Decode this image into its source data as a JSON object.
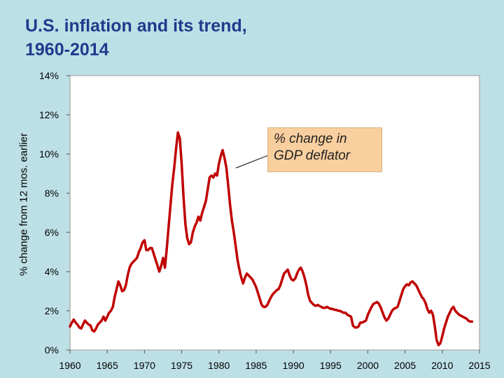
{
  "chart_data": {
    "type": "line",
    "title": "U.S. inflation and its trend, 1960-2014",
    "title_lines": [
      "U.S. inflation and its trend,",
      "1960-2014"
    ],
    "ylabel": "% change from 12 mos. earlier",
    "xlabel": "",
    "xlim": [
      1960,
      2015
    ],
    "ylim": [
      0,
      14
    ],
    "x_ticks": [
      "1960",
      "1965",
      "1970",
      "1975",
      "1980",
      "1985",
      "1990",
      "1995",
      "2000",
      "2005",
      "2010",
      "2015"
    ],
    "y_ticks": [
      "0%",
      "2%",
      "4%",
      "6%",
      "8%",
      "10%",
      "12%",
      "14%"
    ],
    "annotation_lines": [
      "% change in",
      "GDP deflator"
    ],
    "series": [
      {
        "name": "% change in GDP deflator",
        "color": "#c00000",
        "points": [
          [
            1960.0,
            1.2
          ],
          [
            1960.25,
            1.4
          ],
          [
            1960.5,
            1.55
          ],
          [
            1960.75,
            1.4
          ],
          [
            1961.0,
            1.3
          ],
          [
            1961.25,
            1.15
          ],
          [
            1961.5,
            1.1
          ],
          [
            1961.75,
            1.3
          ],
          [
            1962.0,
            1.5
          ],
          [
            1962.25,
            1.4
          ],
          [
            1962.5,
            1.3
          ],
          [
            1962.75,
            1.25
          ],
          [
            1963.0,
            1.0
          ],
          [
            1963.25,
            0.95
          ],
          [
            1963.5,
            1.1
          ],
          [
            1963.75,
            1.3
          ],
          [
            1964.0,
            1.4
          ],
          [
            1964.25,
            1.5
          ],
          [
            1964.5,
            1.7
          ],
          [
            1964.75,
            1.5
          ],
          [
            1965.0,
            1.7
          ],
          [
            1965.25,
            1.9
          ],
          [
            1965.5,
            2.0
          ],
          [
            1965.75,
            2.2
          ],
          [
            1966.0,
            2.7
          ],
          [
            1966.25,
            3.1
          ],
          [
            1966.5,
            3.5
          ],
          [
            1966.75,
            3.3
          ],
          [
            1967.0,
            3.0
          ],
          [
            1967.25,
            3.05
          ],
          [
            1967.5,
            3.3
          ],
          [
            1967.75,
            3.8
          ],
          [
            1968.0,
            4.2
          ],
          [
            1968.25,
            4.4
          ],
          [
            1968.5,
            4.5
          ],
          [
            1968.75,
            4.6
          ],
          [
            1969.0,
            4.7
          ],
          [
            1969.25,
            5.0
          ],
          [
            1969.5,
            5.2
          ],
          [
            1969.75,
            5.5
          ],
          [
            1970.0,
            5.6
          ],
          [
            1970.25,
            5.1
          ],
          [
            1970.5,
            5.1
          ],
          [
            1970.75,
            5.2
          ],
          [
            1971.0,
            5.2
          ],
          [
            1971.25,
            4.9
          ],
          [
            1971.5,
            4.6
          ],
          [
            1971.75,
            4.3
          ],
          [
            1972.0,
            4.0
          ],
          [
            1972.25,
            4.3
          ],
          [
            1972.5,
            4.7
          ],
          [
            1972.75,
            4.2
          ],
          [
            1973.0,
            5.2
          ],
          [
            1973.25,
            6.3
          ],
          [
            1973.5,
            7.4
          ],
          [
            1973.75,
            8.5
          ],
          [
            1974.0,
            9.3
          ],
          [
            1974.25,
            10.3
          ],
          [
            1974.5,
            11.1
          ],
          [
            1974.75,
            10.8
          ],
          [
            1975.0,
            9.5
          ],
          [
            1975.25,
            7.8
          ],
          [
            1975.5,
            6.4
          ],
          [
            1975.75,
            5.7
          ],
          [
            1976.0,
            5.4
          ],
          [
            1976.25,
            5.5
          ],
          [
            1976.5,
            6.0
          ],
          [
            1976.75,
            6.3
          ],
          [
            1977.0,
            6.5
          ],
          [
            1977.25,
            6.8
          ],
          [
            1977.5,
            6.6
          ],
          [
            1977.75,
            7.0
          ],
          [
            1978.0,
            7.3
          ],
          [
            1978.25,
            7.6
          ],
          [
            1978.5,
            8.2
          ],
          [
            1978.75,
            8.8
          ],
          [
            1979.0,
            8.9
          ],
          [
            1979.25,
            8.8
          ],
          [
            1979.5,
            9.0
          ],
          [
            1979.75,
            8.9
          ],
          [
            1980.0,
            9.5
          ],
          [
            1980.25,
            9.9
          ],
          [
            1980.5,
            10.2
          ],
          [
            1980.75,
            9.8
          ],
          [
            1981.0,
            9.3
          ],
          [
            1981.25,
            8.4
          ],
          [
            1981.5,
            7.4
          ],
          [
            1981.75,
            6.6
          ],
          [
            1982.0,
            6.0
          ],
          [
            1982.25,
            5.3
          ],
          [
            1982.5,
            4.6
          ],
          [
            1982.75,
            4.1
          ],
          [
            1983.0,
            3.7
          ],
          [
            1983.25,
            3.4
          ],
          [
            1983.5,
            3.7
          ],
          [
            1983.75,
            3.9
          ],
          [
            1984.0,
            3.8
          ],
          [
            1984.25,
            3.7
          ],
          [
            1984.5,
            3.6
          ],
          [
            1984.75,
            3.4
          ],
          [
            1985.0,
            3.2
          ],
          [
            1985.25,
            2.9
          ],
          [
            1985.5,
            2.6
          ],
          [
            1985.75,
            2.3
          ],
          [
            1986.0,
            2.2
          ],
          [
            1986.25,
            2.2
          ],
          [
            1986.5,
            2.3
          ],
          [
            1986.75,
            2.5
          ],
          [
            1987.0,
            2.7
          ],
          [
            1987.25,
            2.85
          ],
          [
            1987.5,
            2.95
          ],
          [
            1987.75,
            3.05
          ],
          [
            1988.0,
            3.1
          ],
          [
            1988.25,
            3.3
          ],
          [
            1988.5,
            3.6
          ],
          [
            1988.75,
            3.9
          ],
          [
            1989.0,
            4.0
          ],
          [
            1989.25,
            4.1
          ],
          [
            1989.5,
            3.8
          ],
          [
            1989.75,
            3.6
          ],
          [
            1990.0,
            3.55
          ],
          [
            1990.25,
            3.65
          ],
          [
            1990.5,
            3.9
          ],
          [
            1990.75,
            4.1
          ],
          [
            1991.0,
            4.2
          ],
          [
            1991.25,
            4.0
          ],
          [
            1991.5,
            3.7
          ],
          [
            1991.75,
            3.3
          ],
          [
            1992.0,
            2.8
          ],
          [
            1992.25,
            2.5
          ],
          [
            1992.5,
            2.4
          ],
          [
            1992.75,
            2.3
          ],
          [
            1993.0,
            2.25
          ],
          [
            1993.25,
            2.3
          ],
          [
            1993.5,
            2.25
          ],
          [
            1993.75,
            2.2
          ],
          [
            1994.0,
            2.15
          ],
          [
            1994.25,
            2.15
          ],
          [
            1994.5,
            2.2
          ],
          [
            1994.75,
            2.15
          ],
          [
            1995.0,
            2.1
          ],
          [
            1995.25,
            2.1
          ],
          [
            1995.5,
            2.05
          ],
          [
            1995.75,
            2.05
          ],
          [
            1996.0,
            2.0
          ],
          [
            1996.25,
            2.0
          ],
          [
            1996.5,
            1.95
          ],
          [
            1996.75,
            1.9
          ],
          [
            1997.0,
            1.9
          ],
          [
            1997.25,
            1.8
          ],
          [
            1997.5,
            1.75
          ],
          [
            1997.75,
            1.7
          ],
          [
            1998.0,
            1.25
          ],
          [
            1998.25,
            1.15
          ],
          [
            1998.5,
            1.15
          ],
          [
            1998.75,
            1.2
          ],
          [
            1999.0,
            1.4
          ],
          [
            1999.25,
            1.4
          ],
          [
            1999.5,
            1.45
          ],
          [
            1999.75,
            1.5
          ],
          [
            2000.0,
            1.8
          ],
          [
            2000.25,
            2.0
          ],
          [
            2000.5,
            2.2
          ],
          [
            2000.75,
            2.35
          ],
          [
            2001.0,
            2.4
          ],
          [
            2001.25,
            2.45
          ],
          [
            2001.5,
            2.35
          ],
          [
            2001.75,
            2.15
          ],
          [
            2002.0,
            1.9
          ],
          [
            2002.25,
            1.65
          ],
          [
            2002.5,
            1.5
          ],
          [
            2002.75,
            1.6
          ],
          [
            2003.0,
            1.8
          ],
          [
            2003.25,
            2.0
          ],
          [
            2003.5,
            2.1
          ],
          [
            2003.75,
            2.15
          ],
          [
            2004.0,
            2.2
          ],
          [
            2004.25,
            2.5
          ],
          [
            2004.5,
            2.8
          ],
          [
            2004.75,
            3.1
          ],
          [
            2005.0,
            3.25
          ],
          [
            2005.25,
            3.35
          ],
          [
            2005.5,
            3.3
          ],
          [
            2005.75,
            3.45
          ],
          [
            2006.0,
            3.5
          ],
          [
            2006.25,
            3.4
          ],
          [
            2006.5,
            3.3
          ],
          [
            2006.75,
            3.1
          ],
          [
            2007.0,
            2.9
          ],
          [
            2007.25,
            2.7
          ],
          [
            2007.5,
            2.6
          ],
          [
            2007.75,
            2.4
          ],
          [
            2008.0,
            2.1
          ],
          [
            2008.25,
            1.9
          ],
          [
            2008.5,
            2.0
          ],
          [
            2008.75,
            1.8
          ],
          [
            2009.0,
            1.2
          ],
          [
            2009.25,
            0.5
          ],
          [
            2009.5,
            0.25
          ],
          [
            2009.75,
            0.35
          ],
          [
            2010.0,
            0.7
          ],
          [
            2010.25,
            1.1
          ],
          [
            2010.5,
            1.4
          ],
          [
            2010.75,
            1.7
          ],
          [
            2011.0,
            1.9
          ],
          [
            2011.25,
            2.1
          ],
          [
            2011.5,
            2.2
          ],
          [
            2011.75,
            2.0
          ],
          [
            2012.0,
            1.9
          ],
          [
            2012.25,
            1.8
          ],
          [
            2012.5,
            1.75
          ],
          [
            2012.75,
            1.7
          ],
          [
            2013.0,
            1.65
          ],
          [
            2013.25,
            1.6
          ],
          [
            2013.5,
            1.5
          ],
          [
            2013.75,
            1.45
          ],
          [
            2014.0,
            1.45
          ]
        ]
      }
    ]
  }
}
